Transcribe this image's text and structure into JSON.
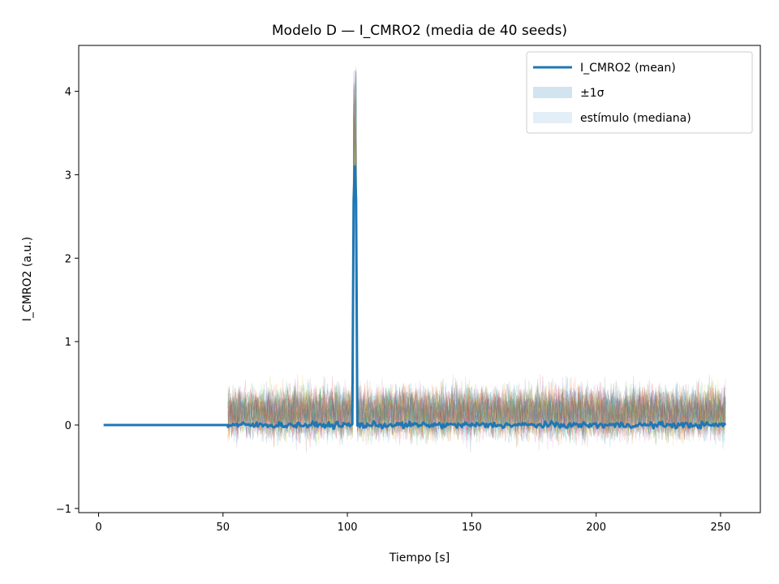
{
  "chart_data": {
    "type": "line",
    "title": "Modelo D — I_CMRO2 (media de 40 seeds)",
    "xlabel": "Tiempo [s]",
    "ylabel": "I_CMRO2 (a.u.)",
    "xlim": [
      -8,
      266
    ],
    "ylim": [
      -1.05,
      4.55
    ],
    "x_ticks": [
      0,
      50,
      100,
      150,
      200,
      250
    ],
    "y_ticks": [
      -1,
      0,
      1,
      2,
      3,
      4
    ],
    "grid": false,
    "legend_position": "top-right",
    "legend": [
      {
        "label": "I_CMRO2 (mean)",
        "kind": "line",
        "color": "#1f77b4"
      },
      {
        "label": "±1σ",
        "kind": "patch",
        "color": "#1f77b4",
        "opacity": 0.2
      },
      {
        "label": "estímulo (mediana)",
        "kind": "patch",
        "color": "#1f77b4",
        "opacity": 0.12
      }
    ],
    "n_seeds": 40,
    "series": [
      {
        "name": "I_CMRO2 (mean)",
        "color": "#1f77b4",
        "segments": [
          {
            "x_start": 2,
            "x_end": 52,
            "value": 0.0
          },
          {
            "x_start": 52,
            "x_end": 102.5,
            "value": 0.0,
            "noise_amplitude": 0.08
          },
          {
            "x_start": 102.5,
            "x_end": 103.5,
            "peak": 3.1
          },
          {
            "x_start": 103.5,
            "x_end": 252,
            "value": 0.0,
            "noise_amplitude": 0.08
          }
        ]
      }
    ],
    "individual_seeds": {
      "x_start": 52,
      "x_end": 252,
      "typical_range": [
        -0.6,
        0.9
      ],
      "extreme_range": [
        -0.75,
        1.3
      ],
      "spike_max": 4.3,
      "colors": [
        "#1f77b4",
        "#ff7f0e",
        "#2ca02c",
        "#d62728",
        "#9467bd",
        "#8c564b",
        "#e377c2",
        "#7f7f7f",
        "#bcbd22",
        "#17becf"
      ]
    }
  }
}
